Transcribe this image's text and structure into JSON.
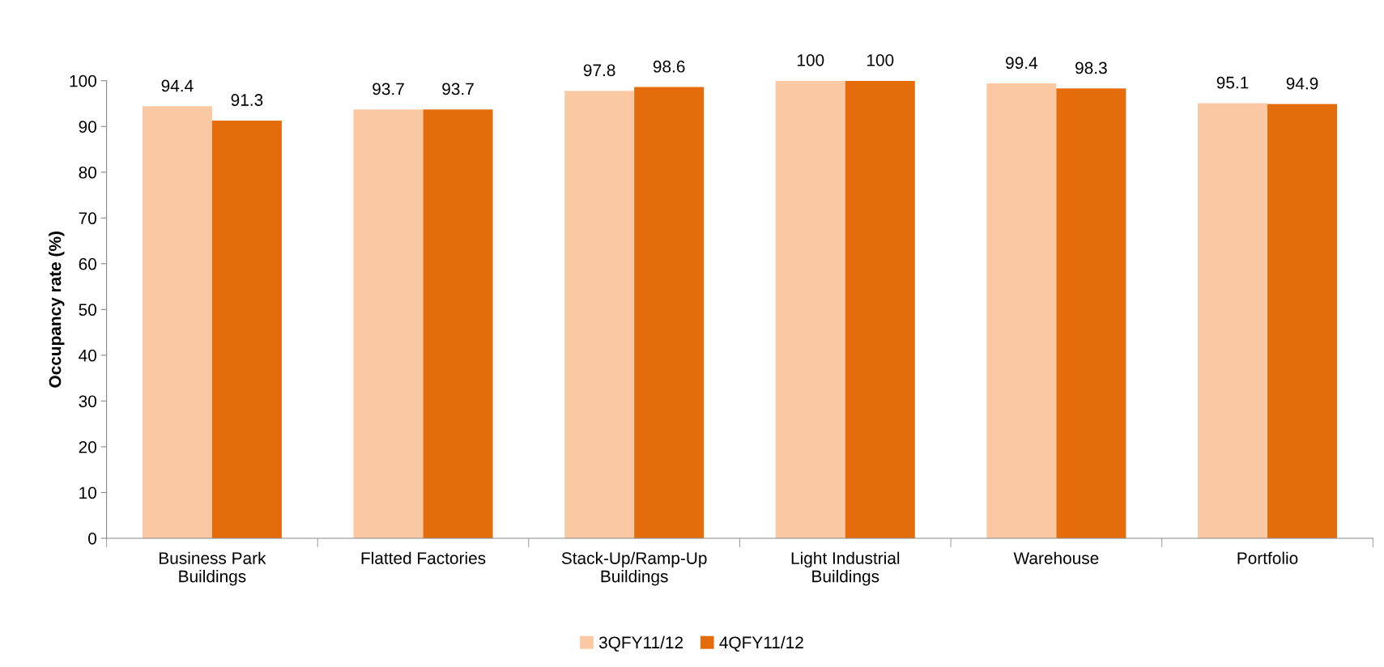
{
  "chart_data": {
    "type": "bar",
    "ylabel": "Occupancy rate (%)",
    "categories": [
      "Business Park\nBuildings",
      "Flatted Factories",
      "Stack-Up/Ramp-Up\nBuildings",
      "Light Industrial\nBuildings",
      "Warehouse",
      "Portfolio"
    ],
    "series": [
      {
        "name": "3QFY11/12",
        "color": "#fac9a3",
        "values": [
          94.4,
          93.7,
          97.8,
          100,
          99.4,
          95.1
        ]
      },
      {
        "name": "4QFY11/12",
        "color": "#e46c0a",
        "values": [
          91.3,
          93.7,
          98.6,
          100,
          98.3,
          94.9
        ]
      }
    ],
    "ylim": [
      0,
      100
    ],
    "yticks": [
      0,
      10,
      20,
      30,
      40,
      50,
      60,
      70,
      80,
      90,
      100
    ],
    "data_labels": true,
    "grid": false,
    "legend": "bottom"
  }
}
